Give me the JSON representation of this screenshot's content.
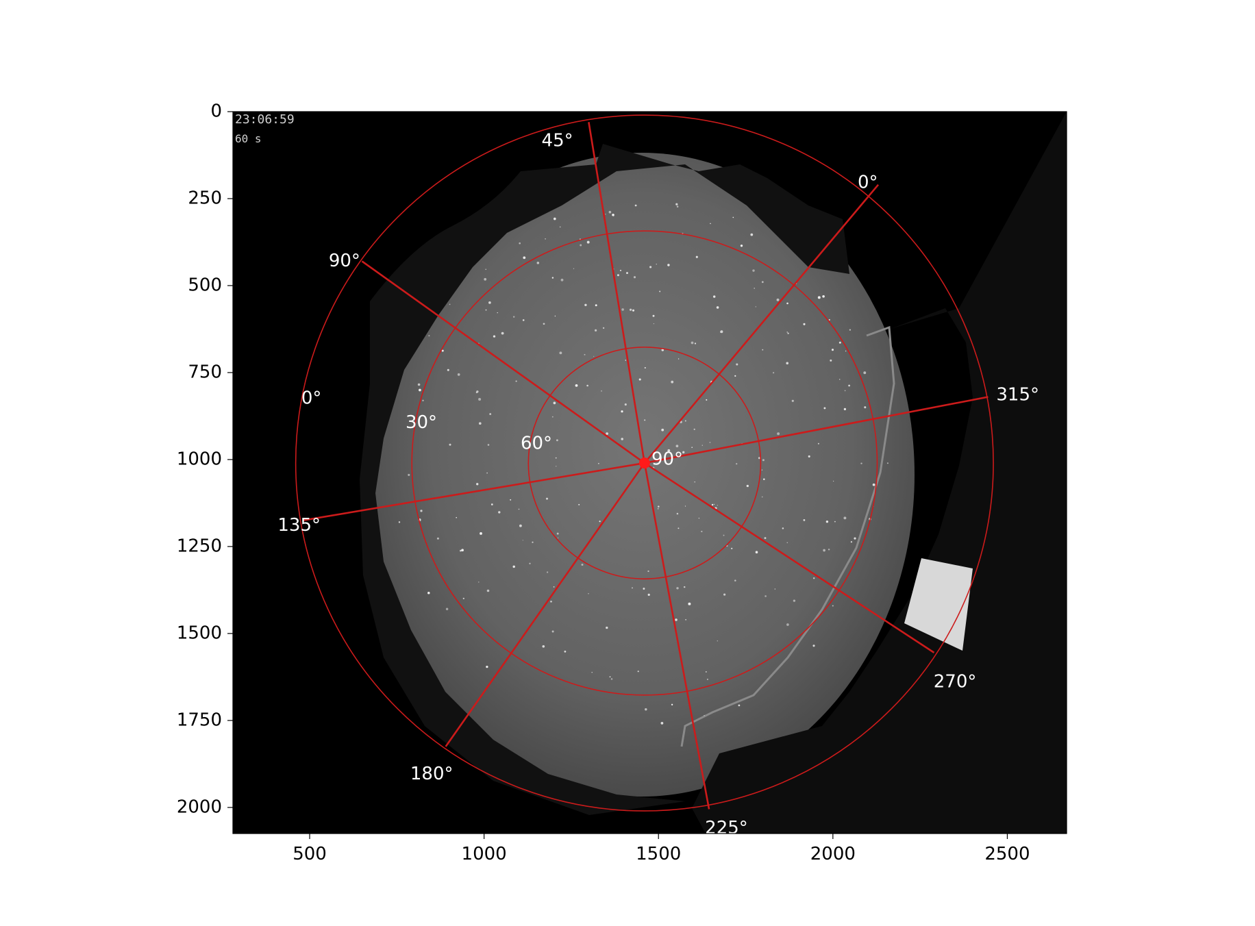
{
  "chart_data": {
    "type": "image",
    "xlim": [
      280,
      2670
    ],
    "ylim": [
      2075,
      0
    ],
    "x_ticks": [
      500,
      1000,
      1500,
      2000,
      2500
    ],
    "y_ticks": [
      0,
      250,
      500,
      750,
      1000,
      1250,
      1500,
      1750,
      2000
    ],
    "image_overlay_text": [
      "23:06:59",
      "60 s"
    ],
    "center_marker": {
      "x": 1460,
      "y": 1010,
      "label": "90°"
    },
    "altitude_circles": [
      {
        "altitude": 0,
        "radius": 1000,
        "label": "0°",
        "label_position": [
          505,
          825
        ]
      },
      {
        "altitude": 30,
        "radius": 667,
        "label": "30°",
        "label_position": [
          820,
          895
        ]
      },
      {
        "altitude": 60,
        "radius": 333,
        "label": "60°",
        "label_position": [
          1150,
          955
        ]
      }
    ],
    "azimuth_lines": [
      {
        "label": "0°",
        "end": [
          2130,
          210
        ],
        "label_position": [
          2100,
          205
        ]
      },
      {
        "label": "45°",
        "end": [
          1300,
          30
        ],
        "label_position": [
          1210,
          85
        ]
      },
      {
        "label": "90°",
        "end": [
          650,
          430
        ],
        "label_position": [
          600,
          430
        ]
      },
      {
        "label": "135°",
        "end": [
          480,
          1175
        ],
        "label_position": [
          470,
          1190
        ]
      },
      {
        "label": "180°",
        "end": [
          890,
          1825
        ],
        "label_position": [
          850,
          1905
        ]
      },
      {
        "label": "225°",
        "end": [
          1645,
          2005
        ],
        "label_position": [
          1695,
          2060
        ]
      },
      {
        "label": "270°",
        "end": [
          2290,
          1555
        ],
        "label_position": [
          2350,
          1640
        ]
      },
      {
        "label": "315°",
        "end": [
          2445,
          820
        ],
        "label_position": [
          2530,
          815
        ]
      }
    ],
    "colors": {
      "overlay": "#cc1b1b",
      "marker": "#ff1a1a",
      "sky": "#6e6e6e",
      "background": "#000000"
    }
  }
}
